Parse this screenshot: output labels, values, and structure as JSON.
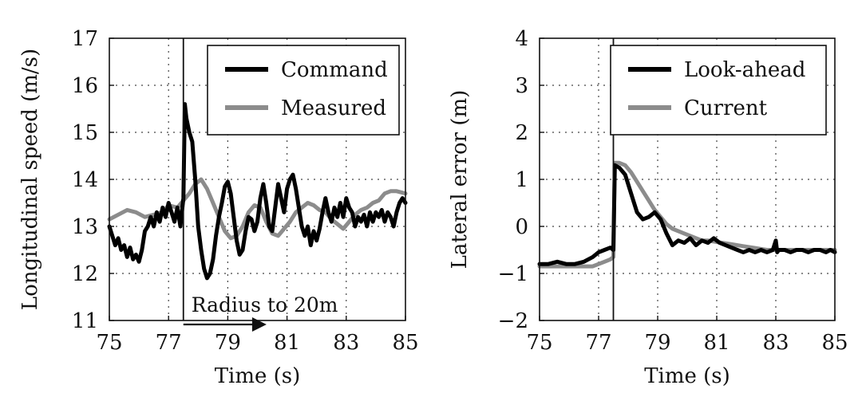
{
  "chart_data": [
    {
      "type": "line",
      "xlabel": "Time (s)",
      "ylabel": "Longitudinal speed (m/s)",
      "xlim": [
        75,
        85
      ],
      "ylim": [
        11,
        17
      ],
      "xticks": [
        "75",
        "77",
        "79",
        "81",
        "83",
        "85"
      ],
      "yticks": [
        "11",
        "12",
        "13",
        "14",
        "15",
        "16",
        "17"
      ],
      "grid": true,
      "legend_position": "top-right",
      "vline_x": 77.5,
      "annotation": {
        "text": "Radius to 20m",
        "x_from": 77.5,
        "x_to": 80.2,
        "y": 11.17
      },
      "series": [
        {
          "name": "Command",
          "color": "#000000",
          "x": [
            75.0,
            75.1,
            75.2,
            75.3,
            75.4,
            75.5,
            75.6,
            75.7,
            75.8,
            75.9,
            76.0,
            76.1,
            76.2,
            76.3,
            76.4,
            76.5,
            76.6,
            76.7,
            76.8,
            76.9,
            77.0,
            77.1,
            77.2,
            77.3,
            77.4,
            77.5,
            77.55,
            77.6,
            77.7,
            77.8,
            77.9,
            78.0,
            78.1,
            78.2,
            78.3,
            78.4,
            78.5,
            78.6,
            78.7,
            78.8,
            78.9,
            79.0,
            79.1,
            79.2,
            79.3,
            79.4,
            79.5,
            79.6,
            79.7,
            79.8,
            79.9,
            80.0,
            80.1,
            80.2,
            80.3,
            80.4,
            80.5,
            80.6,
            80.7,
            80.8,
            80.9,
            81.0,
            81.1,
            81.2,
            81.3,
            81.4,
            81.5,
            81.6,
            81.7,
            81.8,
            81.9,
            82.0,
            82.1,
            82.2,
            82.3,
            82.4,
            82.5,
            82.6,
            82.7,
            82.8,
            82.9,
            83.0,
            83.1,
            83.2,
            83.3,
            83.4,
            83.5,
            83.6,
            83.7,
            83.8,
            83.9,
            84.0,
            84.1,
            84.2,
            84.3,
            84.4,
            84.5,
            84.6,
            84.7,
            84.8,
            84.9,
            85.0
          ],
          "y": [
            13.0,
            12.8,
            12.6,
            12.75,
            12.5,
            12.6,
            12.35,
            12.55,
            12.3,
            12.4,
            12.25,
            12.5,
            12.9,
            13.0,
            13.2,
            13.0,
            13.3,
            13.1,
            13.4,
            13.2,
            13.5,
            13.3,
            13.1,
            13.4,
            13.0,
            13.6,
            15.6,
            15.3,
            15.0,
            14.8,
            14.0,
            13.0,
            12.5,
            12.1,
            11.9,
            12.0,
            12.3,
            12.8,
            13.2,
            13.5,
            13.85,
            13.95,
            13.7,
            13.2,
            12.7,
            12.4,
            12.5,
            12.9,
            13.2,
            13.15,
            12.9,
            13.1,
            13.6,
            13.9,
            13.5,
            13.0,
            12.9,
            13.4,
            13.9,
            13.6,
            13.3,
            13.8,
            14.0,
            14.1,
            13.8,
            13.4,
            13.0,
            12.8,
            13.0,
            12.6,
            12.9,
            12.7,
            12.95,
            13.3,
            13.6,
            13.3,
            13.1,
            13.4,
            13.2,
            13.5,
            13.2,
            13.6,
            13.4,
            13.3,
            13.0,
            13.2,
            13.1,
            13.25,
            13.0,
            13.3,
            13.1,
            13.3,
            13.2,
            13.35,
            13.1,
            13.3,
            13.2,
            13.0,
            13.3,
            13.5,
            13.6,
            13.5
          ]
        },
        {
          "name": "Measured",
          "color": "#8c8c8c",
          "x": [
            75.0,
            75.3,
            75.6,
            75.9,
            76.2,
            76.5,
            76.8,
            77.0,
            77.3,
            77.5,
            77.7,
            77.9,
            78.1,
            78.3,
            78.5,
            78.7,
            78.9,
            79.1,
            79.3,
            79.5,
            79.7,
            79.9,
            80.1,
            80.3,
            80.5,
            80.7,
            80.9,
            81.1,
            81.3,
            81.5,
            81.7,
            81.9,
            82.1,
            82.3,
            82.5,
            82.7,
            82.9,
            83.1,
            83.3,
            83.5,
            83.7,
            83.9,
            84.1,
            84.3,
            84.5,
            84.7,
            85.0
          ],
          "y": [
            13.15,
            13.25,
            13.35,
            13.3,
            13.2,
            13.25,
            13.3,
            13.45,
            13.4,
            13.55,
            13.7,
            13.9,
            14.0,
            13.8,
            13.5,
            13.2,
            12.9,
            12.75,
            12.8,
            13.0,
            13.3,
            13.45,
            13.4,
            13.1,
            12.85,
            12.8,
            12.95,
            13.1,
            13.3,
            13.4,
            13.5,
            13.45,
            13.35,
            13.3,
            13.15,
            13.05,
            12.95,
            13.1,
            13.25,
            13.35,
            13.4,
            13.5,
            13.55,
            13.7,
            13.75,
            13.75,
            13.7
          ]
        }
      ]
    },
    {
      "type": "line",
      "xlabel": "Time (s)",
      "ylabel": "Lateral error (m)",
      "xlim": [
        75,
        85
      ],
      "ylim": [
        -2,
        4
      ],
      "xticks": [
        "75",
        "77",
        "79",
        "81",
        "83",
        "85"
      ],
      "yticks": [
        "−2",
        "−1",
        "0",
        "1",
        "2",
        "3",
        "4"
      ],
      "grid": true,
      "legend_position": "top-right",
      "vline_x": 77.5,
      "series": [
        {
          "name": "Look-ahead",
          "color": "#000000",
          "x": [
            75.0,
            75.3,
            75.6,
            75.9,
            76.2,
            76.5,
            76.8,
            77.0,
            77.2,
            77.4,
            77.5,
            77.55,
            77.7,
            77.9,
            78.1,
            78.3,
            78.5,
            78.7,
            78.9,
            79.1,
            79.3,
            79.5,
            79.7,
            79.9,
            80.1,
            80.3,
            80.5,
            80.7,
            80.9,
            81.1,
            81.3,
            81.5,
            81.7,
            81.9,
            82.1,
            82.3,
            82.5,
            82.7,
            82.9,
            83.0,
            83.05,
            83.1,
            83.3,
            83.5,
            83.7,
            83.9,
            84.1,
            84.3,
            84.5,
            84.7,
            84.85,
            85.0
          ],
          "y": [
            -0.8,
            -0.8,
            -0.75,
            -0.8,
            -0.8,
            -0.75,
            -0.65,
            -0.55,
            -0.5,
            -0.45,
            -0.5,
            1.3,
            1.25,
            1.1,
            0.7,
            0.3,
            0.15,
            0.2,
            0.3,
            0.15,
            -0.15,
            -0.4,
            -0.3,
            -0.35,
            -0.25,
            -0.4,
            -0.3,
            -0.35,
            -0.25,
            -0.35,
            -0.4,
            -0.45,
            -0.5,
            -0.55,
            -0.5,
            -0.55,
            -0.5,
            -0.55,
            -0.5,
            -0.3,
            -0.55,
            -0.5,
            -0.5,
            -0.55,
            -0.5,
            -0.5,
            -0.55,
            -0.5,
            -0.5,
            -0.55,
            -0.5,
            -0.55
          ]
        },
        {
          "name": "Current",
          "color": "#8c8c8c",
          "x": [
            75.0,
            75.3,
            75.6,
            75.9,
            76.2,
            76.5,
            76.8,
            77.0,
            77.2,
            77.4,
            77.5,
            77.55,
            77.7,
            77.9,
            78.1,
            78.3,
            78.5,
            78.7,
            78.9,
            79.1,
            79.3,
            79.5,
            79.7,
            79.9,
            80.1,
            80.3,
            80.5,
            80.7,
            80.9,
            81.1,
            81.3,
            81.5,
            81.7,
            81.9,
            82.1,
            82.3,
            82.5,
            82.7,
            82.9,
            83.1,
            83.3,
            83.5,
            83.7,
            83.9,
            84.1,
            84.3,
            84.5,
            84.7,
            85.0
          ],
          "y": [
            -0.85,
            -0.85,
            -0.85,
            -0.85,
            -0.85,
            -0.85,
            -0.85,
            -0.8,
            -0.75,
            -0.7,
            -0.65,
            1.35,
            1.35,
            1.3,
            1.15,
            0.95,
            0.75,
            0.55,
            0.35,
            0.2,
            0.05,
            -0.05,
            -0.1,
            -0.15,
            -0.2,
            -0.25,
            -0.3,
            -0.3,
            -0.32,
            -0.34,
            -0.36,
            -0.38,
            -0.4,
            -0.42,
            -0.44,
            -0.46,
            -0.48,
            -0.5,
            -0.5,
            -0.5,
            -0.5,
            -0.5,
            -0.5,
            -0.5,
            -0.5,
            -0.5,
            -0.5,
            -0.5,
            -0.5
          ]
        }
      ]
    }
  ]
}
